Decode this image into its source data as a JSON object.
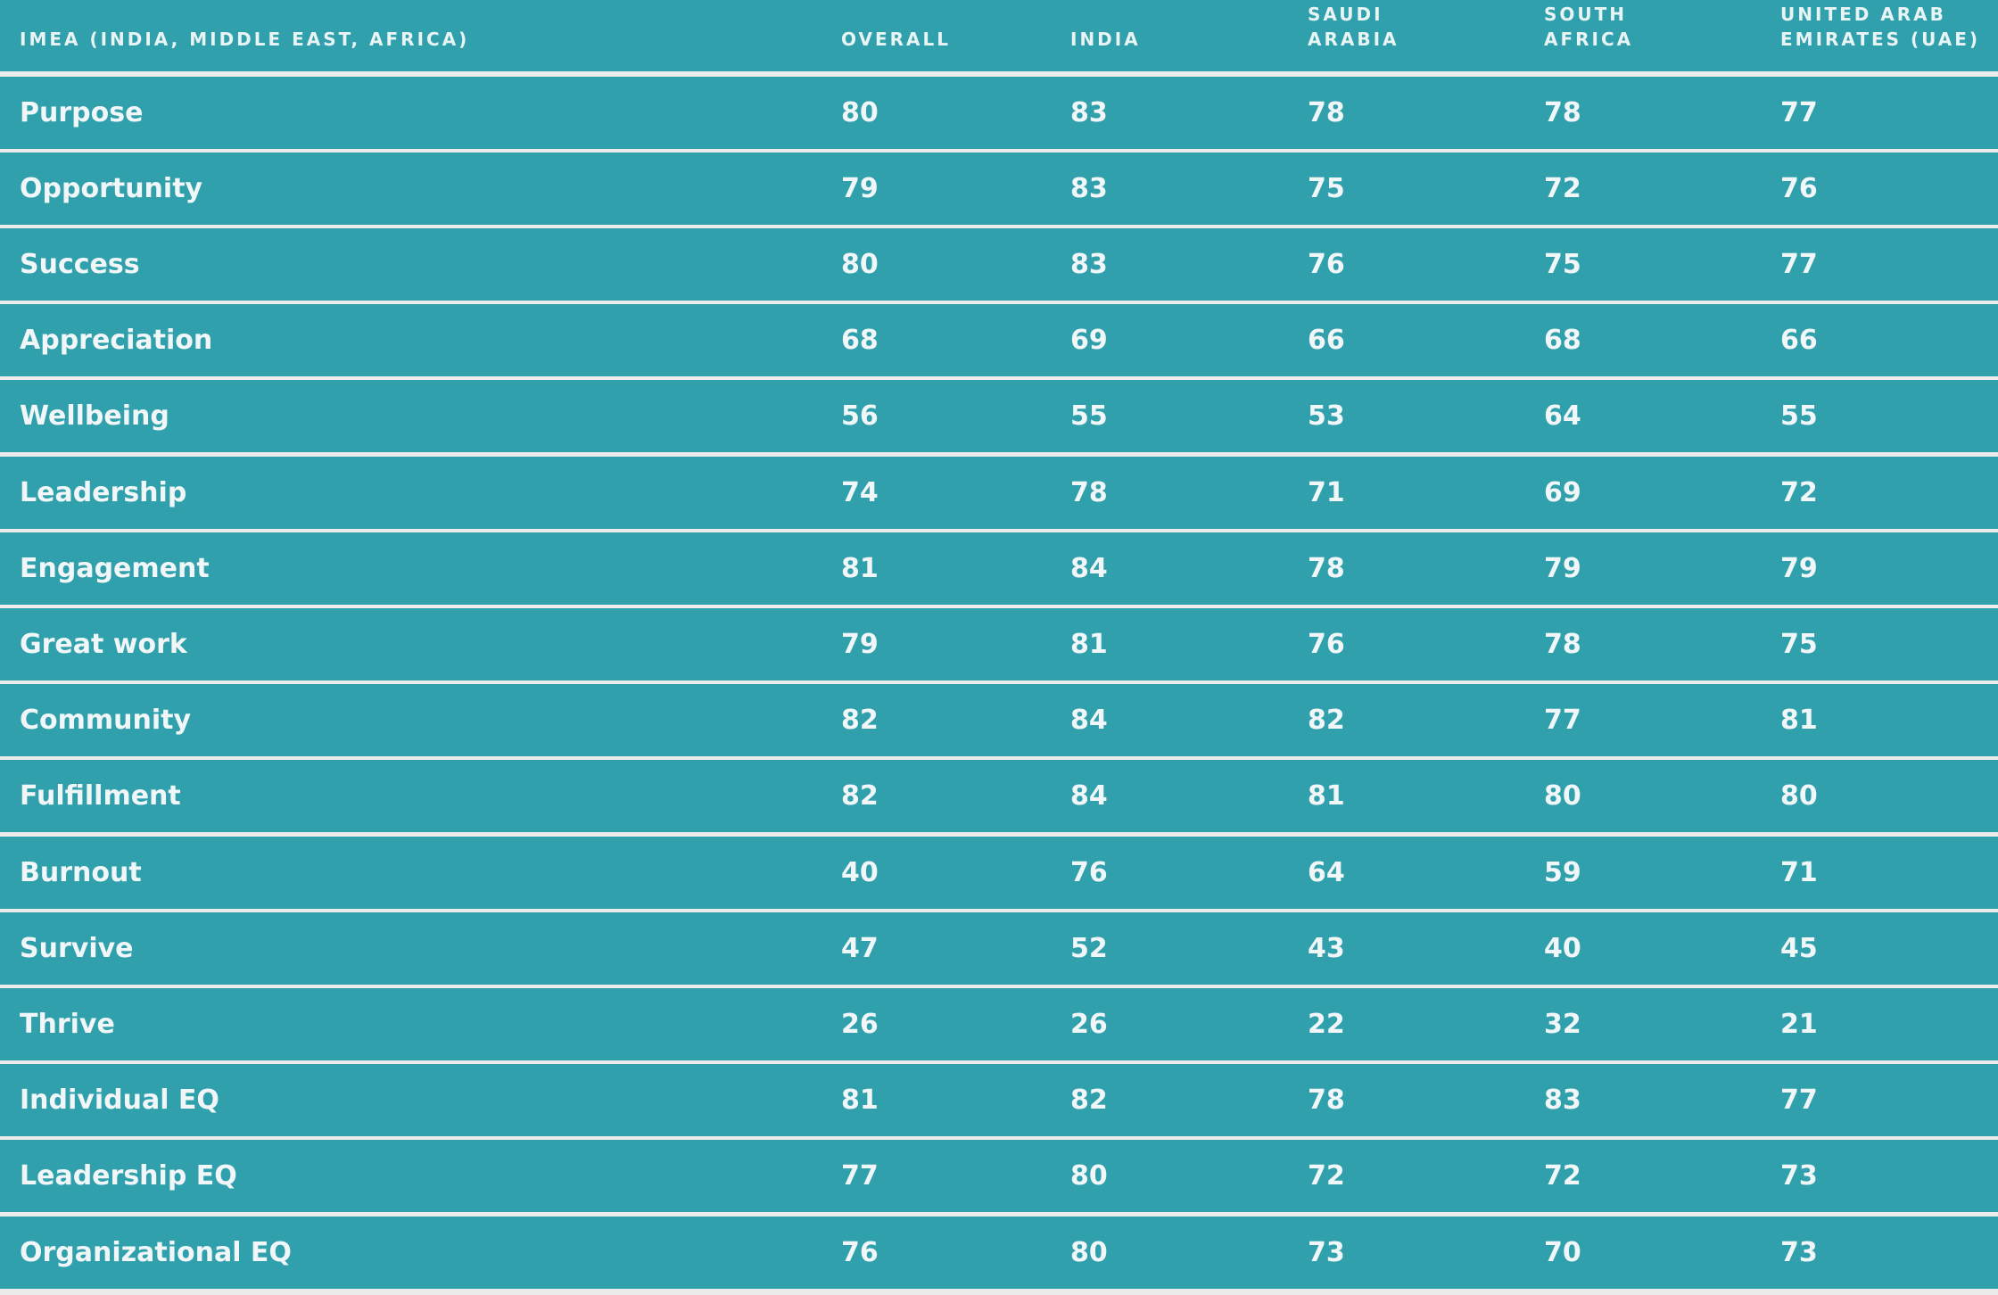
{
  "columns": [
    "IMEA (INDIA, MIDDLE EAST, AFRICA)",
    "OVERALL",
    "INDIA",
    "SAUDI\nARABIA",
    "SOUTH\nAFRICA",
    "UNITED ARAB\nEMIRATES (UAE)"
  ],
  "rows": [
    {
      "label": "Purpose",
      "values": [
        "80",
        "83",
        "78",
        "78",
        "77"
      ]
    },
    {
      "label": "Opportunity",
      "values": [
        "79",
        "83",
        "75",
        "72",
        "76"
      ]
    },
    {
      "label": "Success",
      "values": [
        "80",
        "83",
        "76",
        "75",
        "77"
      ]
    },
    {
      "label": "Appreciation",
      "values": [
        "68",
        "69",
        "66",
        "68",
        "66"
      ]
    },
    {
      "label": "Wellbeing",
      "values": [
        "56",
        "55",
        "53",
        "64",
        "55"
      ]
    },
    {
      "label": "Leadership",
      "values": [
        "74",
        "78",
        "71",
        "69",
        "72"
      ]
    },
    {
      "label": "Engagement",
      "values": [
        "81",
        "84",
        "78",
        "79",
        "79"
      ]
    },
    {
      "label": "Great work",
      "values": [
        "79",
        "81",
        "76",
        "78",
        "75"
      ]
    },
    {
      "label": "Community",
      "values": [
        "82",
        "84",
        "82",
        "77",
        "81"
      ]
    },
    {
      "label": "Fulfillment",
      "values": [
        "82",
        "84",
        "81",
        "80",
        "80"
      ]
    },
    {
      "label": "Burnout",
      "values": [
        "40",
        "76",
        "64",
        "59",
        "71"
      ]
    },
    {
      "label": "Survive",
      "values": [
        "47",
        "52",
        "43",
        "40",
        "45"
      ]
    },
    {
      "label": "Thrive",
      "values": [
        "26",
        "26",
        "22",
        "32",
        "21"
      ]
    },
    {
      "label": "Individual EQ",
      "values": [
        "81",
        "82",
        "78",
        "83",
        "77"
      ]
    },
    {
      "label": "Leadership EQ",
      "values": [
        "77",
        "80",
        "72",
        "72",
        "73"
      ]
    },
    {
      "label": "Organizational EQ",
      "values": [
        "76",
        "80",
        "73",
        "70",
        "73"
      ]
    }
  ]
}
